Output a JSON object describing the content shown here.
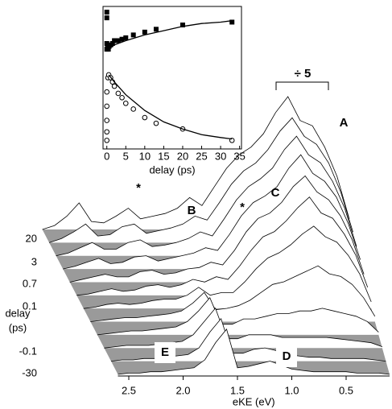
{
  "chart_data": [
    {
      "type": "waterfall",
      "xlabel": "eKE (eV)",
      "zlabel_lines": [
        "delay",
        "(ps)"
      ],
      "x": [
        2.6,
        2.5,
        2.4,
        2.3,
        2.2,
        2.1,
        2.0,
        1.9,
        1.8,
        1.7,
        1.6,
        1.5,
        1.4,
        1.3,
        1.2,
        1.1,
        1.0,
        0.9,
        0.8,
        0.7,
        0.6,
        0.5,
        0.4,
        0.3,
        0.2,
        0.1
      ],
      "xlim": [
        2.6,
        0.1
      ],
      "xticks": [
        2.5,
        {
          "value": 2,
          "label": "2.0"
        },
        1.5,
        {
          "value": 1,
          "label": "1.0"
        },
        0.5
      ],
      "zticks": [
        20,
        3,
        0.7,
        0.1,
        -0.1,
        -30
      ],
      "ylim": [
        0,
        1
      ],
      "color": "#000000",
      "floor_color": "#9a9a9a",
      "series": [
        {
          "values": [
            0,
            0.03,
            0.1,
            0.2,
            0.06,
            0.05,
            0.1,
            0.16,
            0.08,
            0.1,
            0.12,
            0.16,
            0.24,
            0.18,
            0.32,
            0.46,
            0.56,
            0.62,
            0.72,
            0.88,
            1.0,
            0.82,
            0.78,
            0.62,
            0.4,
            0.08
          ]
        },
        {
          "values": [
            0,
            0.03,
            0.08,
            0.14,
            0.05,
            0.06,
            0.12,
            0.14,
            0.07,
            0.09,
            0.11,
            0.14,
            0.2,
            0.17,
            0.3,
            0.44,
            0.54,
            0.6,
            0.7,
            0.84,
            0.94,
            0.8,
            0.74,
            0.6,
            0.38,
            0.08
          ]
        },
        {
          "values": [
            0,
            0.02,
            0.06,
            0.1,
            0.05,
            0.05,
            0.1,
            0.12,
            0.07,
            0.08,
            0.1,
            0.13,
            0.18,
            0.15,
            0.28,
            0.42,
            0.52,
            0.58,
            0.66,
            0.8,
            0.9,
            0.76,
            0.7,
            0.56,
            0.36,
            0.07
          ]
        },
        {
          "values": [
            0,
            0.02,
            0.05,
            0.08,
            0.04,
            0.05,
            0.09,
            0.1,
            0.06,
            0.08,
            0.1,
            0.12,
            0.16,
            0.14,
            0.26,
            0.4,
            0.5,
            0.55,
            0.62,
            0.76,
            0.86,
            0.72,
            0.66,
            0.54,
            0.34,
            0.07
          ]
        },
        {
          "values": [
            0,
            0.02,
            0.04,
            0.06,
            0.04,
            0.04,
            0.08,
            0.09,
            0.06,
            0.07,
            0.1,
            0.11,
            0.15,
            0.13,
            0.24,
            0.38,
            0.48,
            0.52,
            0.6,
            0.72,
            0.8,
            0.68,
            0.62,
            0.5,
            0.32,
            0.06
          ]
        },
        {
          "values": [
            0,
            0.01,
            0.03,
            0.05,
            0.03,
            0.04,
            0.07,
            0.08,
            0.06,
            0.08,
            0.12,
            0.1,
            0.14,
            0.12,
            0.22,
            0.34,
            0.44,
            0.48,
            0.56,
            0.66,
            0.74,
            0.62,
            0.58,
            0.46,
            0.3,
            0.06
          ]
        },
        {
          "values": [
            0,
            0.01,
            0.03,
            0.04,
            0.03,
            0.04,
            0.06,
            0.07,
            0.07,
            0.1,
            0.16,
            0.1,
            0.12,
            0.12,
            0.2,
            0.3,
            0.38,
            0.42,
            0.48,
            0.56,
            0.62,
            0.54,
            0.5,
            0.4,
            0.26,
            0.05
          ]
        },
        {
          "values": [
            0,
            0.01,
            0.02,
            0.03,
            0.03,
            0.04,
            0.05,
            0.06,
            0.08,
            0.14,
            0.22,
            0.09,
            0.1,
            0.12,
            0.16,
            0.22,
            0.28,
            0.3,
            0.34,
            0.38,
            0.42,
            0.36,
            0.34,
            0.28,
            0.18,
            0.04
          ]
        },
        {
          "values": [
            0,
            0.01,
            0.02,
            0.03,
            0.03,
            0.04,
            0.05,
            0.06,
            0.1,
            0.18,
            0.28,
            0.08,
            0.08,
            0.12,
            0.12,
            0.14,
            0.16,
            0.16,
            0.18,
            0.18,
            0.2,
            0.18,
            0.16,
            0.14,
            0.1,
            0.02
          ]
        },
        {
          "values": [
            0,
            0.01,
            0.02,
            0.02,
            0.02,
            0.03,
            0.04,
            0.05,
            0.1,
            0.2,
            0.3,
            0.07,
            0.07,
            0.1,
            0.1,
            0.1,
            0.08,
            0.08,
            0.08,
            0.08,
            0.08,
            0.07,
            0.06,
            0.05,
            0.04,
            0.01
          ]
        },
        {
          "values": [
            0,
            0.01,
            0.01,
            0.02,
            0.02,
            0.03,
            0.04,
            0.05,
            0.1,
            0.22,
            0.32,
            0.06,
            0.06,
            0.09,
            0.1,
            0.08,
            0.05,
            0.04,
            0.03,
            0.03,
            0.02,
            0.02,
            0.02,
            0.02,
            0.01,
            0
          ]
        },
        {
          "values": [
            0,
            0.01,
            0.01,
            0.02,
            0.02,
            0.03,
            0.04,
            0.05,
            0.11,
            0.24,
            0.34,
            0.05,
            0.06,
            0.08,
            0.1,
            0.07,
            0.04,
            0.03,
            0.02,
            0.02,
            0.02,
            0.02,
            0.01,
            0.01,
            0.01,
            0
          ]
        }
      ],
      "annotations": [
        "A",
        "B",
        "C",
        "D",
        "E",
        "*",
        "*",
        "÷ 5"
      ]
    },
    {
      "type": "scatter",
      "xlabel": "delay (ps)",
      "xlim": [
        -1,
        35.5
      ],
      "xticks": [
        0,
        5,
        10,
        15,
        20,
        25,
        30,
        35
      ],
      "ylim": [
        0,
        1
      ],
      "color": "#000000",
      "series": [
        {
          "marker": "square-filled",
          "x": [
            0,
            0,
            0,
            0,
            0.2,
            0.4,
            0.6,
            1,
            1.5,
            2,
            3,
            4,
            5,
            7,
            10,
            13,
            20,
            33
          ],
          "values": [
            0.96,
            0.92,
            0.74,
            0.7,
            0.72,
            0.7,
            0.72,
            0.73,
            0.74,
            0.76,
            0.76,
            0.77,
            0.78,
            0.8,
            0.82,
            0.84,
            0.87,
            0.89
          ]
        },
        {
          "marker": "circle-open",
          "x": [
            0,
            0,
            0,
            0,
            0,
            0.3,
            0.5,
            1,
            1.5,
            2,
            3,
            4,
            5,
            7,
            10,
            13,
            20,
            33
          ],
          "values": [
            0.06,
            0.12,
            0.2,
            0.3,
            0.4,
            0.5,
            0.52,
            0.5,
            0.47,
            0.44,
            0.39,
            0.36,
            0.32,
            0.28,
            0.22,
            0.18,
            0.14,
            0.06
          ]
        },
        {
          "marker": "line",
          "x": [
            0.5,
            2,
            5,
            10,
            15,
            20,
            25,
            30,
            33
          ],
          "values": [
            0.7,
            0.73,
            0.76,
            0.8,
            0.83,
            0.86,
            0.88,
            0.89,
            0.9
          ]
        },
        {
          "marker": "line",
          "x": [
            0.5,
            2,
            5,
            10,
            15,
            20,
            25,
            30,
            33
          ],
          "values": [
            0.52,
            0.47,
            0.38,
            0.27,
            0.19,
            0.14,
            0.1,
            0.08,
            0.07
          ]
        }
      ]
    }
  ]
}
